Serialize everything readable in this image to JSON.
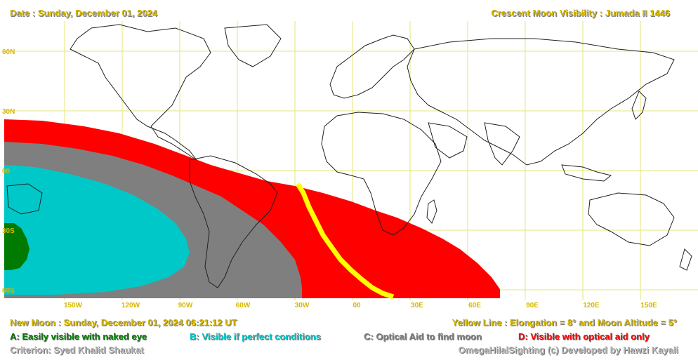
{
  "header": {
    "date": "Date : Sunday, December 01, 2024",
    "title": "Crescent Moon Visibility : Jumada II  1446"
  },
  "lat_labels": [
    "60N",
    "30N",
    "00",
    "30S",
    "60S"
  ],
  "lon_labels": [
    "150W",
    "120W",
    "90W",
    "60W",
    "30W",
    "00",
    "30E",
    "60E",
    "90E",
    "120E",
    "150E"
  ],
  "footer": {
    "new_moon": "New Moon : Sunday, December 01, 2024  06:21:12  UT",
    "yellow_line": "Yellow Line : Elongation = 8° and Moon Altitude = 5°",
    "criterion": "Criterion: Syed Khalid Shaukat",
    "credit": "OmegaHilalSighting  (c)  Developed by Hawzi Kayali"
  },
  "legend": [
    {
      "key": "A",
      "text": "A: Easily visible with naked eye",
      "color": "#007a00"
    },
    {
      "key": "B",
      "text": "B: Visible if perfect conditions",
      "color": "#00c8c8"
    },
    {
      "key": "C",
      "text": "C: Optical Aid to find moon",
      "color": "#7f7f7f"
    },
    {
      "key": "D",
      "text": "D: Visible with optical aid only",
      "color": "#ff0000"
    }
  ],
  "colors": {
    "zone_a": "#007a00",
    "zone_b": "#00c8c8",
    "zone_c": "#7f7f7f",
    "zone_d": "#ff0000",
    "yellow_line": "#ffff00",
    "grid": "#e6e67a",
    "label": "#d6b800"
  }
}
